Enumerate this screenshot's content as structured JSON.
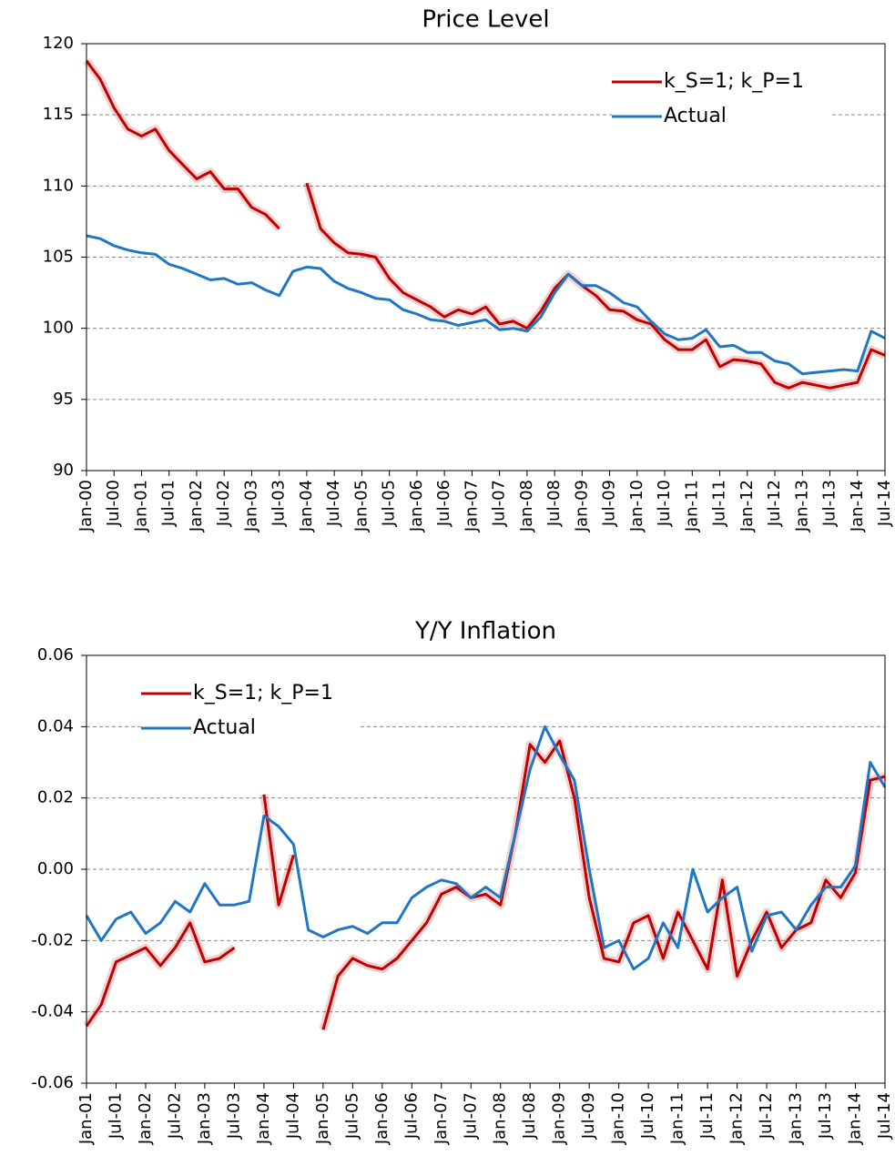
{
  "chart_data": [
    {
      "type": "line",
      "title": "Price Level",
      "categories": [
        "Jan-00",
        null,
        "Jul-00",
        null,
        "Jan-01",
        null,
        "Jul-01",
        null,
        "Jan-02",
        null,
        "Jul-02",
        null,
        "Jan-03",
        null,
        "Jul-03",
        null,
        "Jan-04",
        null,
        "Jul-04",
        null,
        "Jan-05",
        null,
        "Jul-05",
        null,
        "Jan-06",
        null,
        "Jul-06",
        null,
        "Jan-07",
        null,
        "Jul-07",
        null,
        "Jan-08",
        null,
        "Jul-08",
        null,
        "Jan-09",
        null,
        "Jul-09",
        null,
        "Jan-10",
        null,
        "Jul-10",
        null,
        "Jan-11",
        null,
        "Jul-11",
        null,
        "Jan-12",
        null,
        "Jul-12",
        null,
        "Jan-13",
        null,
        "Jul-13",
        null,
        "Jan-14",
        null,
        "Jul-14"
      ],
      "series": [
        {
          "name": "k_S=1; k_P=1",
          "color": "#c00000",
          "values": [
            118.8,
            117.5,
            115.5,
            114,
            113.5,
            114,
            112.5,
            111.5,
            110.5,
            111,
            109.8,
            109.8,
            108.5,
            108,
            107,
            null,
            110.2,
            107,
            106,
            105.3,
            105.2,
            105,
            103.5,
            102.5,
            102,
            101.5,
            100.8,
            101.3,
            101,
            101.5,
            100.3,
            100.5,
            100,
            101.2,
            102.8,
            103.8,
            103,
            102.3,
            101.3,
            101.2,
            100.6,
            100.3,
            99.2,
            98.5,
            98.5,
            99.2,
            97.3,
            97.8,
            97.7,
            97.5,
            96.2,
            95.8,
            96.2,
            96,
            95.8,
            96,
            96.2,
            98.5,
            98.1
          ]
        },
        {
          "name": "Actual",
          "color": "#1f77c4",
          "values": [
            106.5,
            106.3,
            105.8,
            105.5,
            105.3,
            105.2,
            104.5,
            104.2,
            103.8,
            103.4,
            103.5,
            103.1,
            103.2,
            102.7,
            102.3,
            104,
            104.3,
            104.2,
            103.3,
            102.8,
            102.5,
            102.1,
            102,
            101.3,
            101,
            100.6,
            100.5,
            100.2,
            100.4,
            100.6,
            99.9,
            100,
            99.8,
            100.8,
            102.5,
            103.8,
            103,
            103,
            102.5,
            101.8,
            101.5,
            100.5,
            99.6,
            99.2,
            99.3,
            99.9,
            98.7,
            98.8,
            98.3,
            98.3,
            97.7,
            97.5,
            96.8,
            96.9,
            97,
            97.1,
            97,
            99.8,
            99.3
          ]
        }
      ],
      "ylim": [
        90,
        120
      ],
      "yticks": [
        90,
        95,
        100,
        105,
        110,
        115,
        120
      ],
      "grid": true,
      "legend": "upper right"
    },
    {
      "type": "line",
      "title": "Y/Y Inflation",
      "categories": [
        "Jan-01",
        null,
        "Jul-01",
        null,
        "Jan-02",
        null,
        "Jul-02",
        null,
        "Jan-03",
        null,
        "Jul-03",
        null,
        "Jan-04",
        null,
        "Jul-04",
        null,
        "Jan-05",
        null,
        "Jul-05",
        null,
        "Jan-06",
        null,
        "Jul-06",
        null,
        "Jan-07",
        null,
        "Jul-07",
        null,
        "Jan-08",
        null,
        "Jul-08",
        null,
        "Jan-09",
        null,
        "Jul-09",
        null,
        "Jan-10",
        null,
        "Jul-10",
        null,
        "Jan-11",
        null,
        "Jul-11",
        null,
        "Jan-12",
        null,
        "Jul-12",
        null,
        "Jan-13",
        null,
        "Jul-13",
        null,
        "Jan-14",
        null,
        "Jul-14"
      ],
      "series": [
        {
          "name": "k_S=1; k_P=1",
          "color": "#c00000",
          "values": [
            -0.044,
            -0.038,
            -0.026,
            -0.024,
            -0.022,
            -0.027,
            -0.022,
            -0.015,
            -0.026,
            -0.025,
            -0.022,
            null,
            0.021,
            -0.01,
            0.004,
            null,
            -0.045,
            -0.03,
            -0.025,
            -0.027,
            -0.028,
            -0.025,
            -0.02,
            -0.015,
            -0.007,
            -0.005,
            -0.008,
            -0.007,
            -0.01,
            0.01,
            0.035,
            0.03,
            0.036,
            0.02,
            -0.008,
            -0.025,
            -0.026,
            -0.015,
            -0.013,
            -0.025,
            -0.012,
            -0.02,
            -0.028,
            -0.003,
            -0.03,
            -0.02,
            -0.012,
            -0.022,
            -0.017,
            -0.015,
            -0.003,
            -0.008,
            -0.001,
            0.025,
            0.026
          ]
        },
        {
          "name": "Actual",
          "color": "#1f77c4",
          "values": [
            -0.013,
            -0.02,
            -0.014,
            -0.012,
            -0.018,
            -0.015,
            -0.009,
            -0.012,
            -0.004,
            -0.01,
            -0.01,
            -0.009,
            0.015,
            0.012,
            0.007,
            -0.017,
            -0.019,
            -0.017,
            -0.016,
            -0.018,
            -0.015,
            -0.015,
            -0.008,
            -0.005,
            -0.003,
            -0.004,
            -0.008,
            -0.005,
            -0.008,
            0.01,
            0.028,
            0.04,
            0.032,
            0.025,
            0,
            -0.022,
            -0.02,
            -0.028,
            -0.025,
            -0.015,
            -0.022,
            0,
            -0.012,
            -0.008,
            -0.005,
            -0.023,
            -0.013,
            -0.012,
            -0.017,
            -0.01,
            -0.005,
            -0.005,
            0.001,
            0.03,
            0.023
          ]
        }
      ],
      "ylim": [
        -0.06,
        0.06
      ],
      "yticks": [
        -0.06,
        -0.04,
        -0.02,
        {
          "value": 0,
          "label": "0.00"
        },
        0.02,
        0.04,
        0.06
      ],
      "grid": true,
      "legend": "upper left"
    }
  ]
}
